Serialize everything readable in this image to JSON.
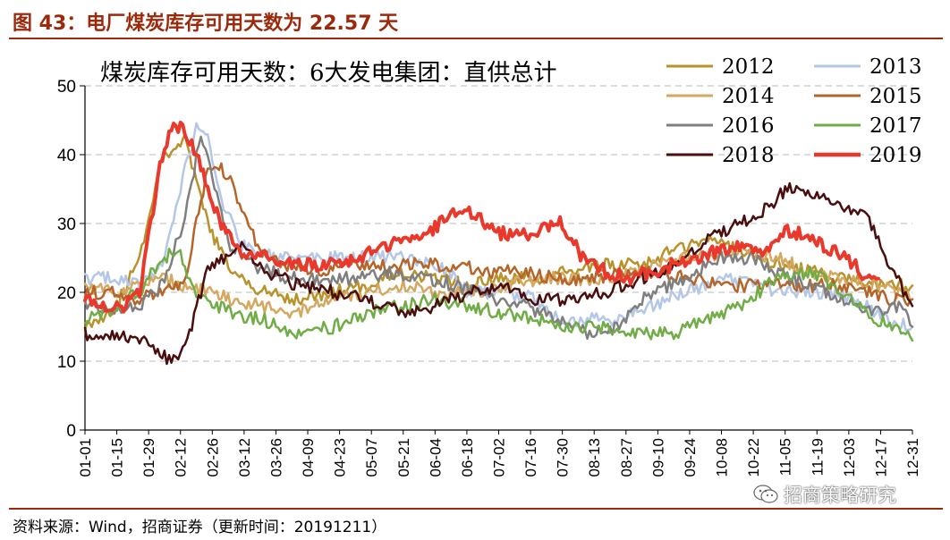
{
  "figure": {
    "title": "图 43：电厂煤炭库存可用天数为 22.57 天",
    "source": "资料来源：Wind，招商证券（更新时间：20191211）",
    "watermark": "招商策略研究"
  },
  "chart_data": {
    "type": "line",
    "title": "煤炭库存可用天数：6大发电集团：直供总计",
    "xlabel": "",
    "ylabel": "",
    "ylim": [
      0,
      50
    ],
    "yticks": [
      0,
      10,
      20,
      30,
      40,
      50
    ],
    "xticks": [
      "01-01",
      "01-15",
      "01-29",
      "02-12",
      "02-26",
      "03-12",
      "03-26",
      "04-09",
      "04-23",
      "05-07",
      "05-21",
      "06-04",
      "06-18",
      "07-02",
      "07-16",
      "07-30",
      "08-13",
      "08-27",
      "09-10",
      "09-24",
      "10-08",
      "10-22",
      "11-05",
      "11-19",
      "12-03",
      "12-17",
      "12-31"
    ],
    "grid": "horizontal dashed",
    "legend_position": "top-right",
    "series": [
      {
        "name": "2012",
        "color": "#b8922a",
        "width": 2.5,
        "points": [
          [
            1,
            15
          ],
          [
            15,
            18
          ],
          [
            25,
            25
          ],
          [
            35,
            40
          ],
          [
            45,
            42
          ],
          [
            55,
            30
          ],
          [
            65,
            23
          ],
          [
            80,
            20
          ],
          [
            95,
            19
          ],
          [
            110,
            20
          ],
          [
            125,
            21
          ],
          [
            140,
            23
          ],
          [
            155,
            22
          ],
          [
            170,
            21
          ],
          [
            185,
            22
          ],
          [
            200,
            22
          ],
          [
            215,
            23
          ],
          [
            230,
            24
          ],
          [
            245,
            24
          ],
          [
            260,
            26
          ],
          [
            275,
            28
          ],
          [
            290,
            26
          ],
          [
            305,
            24
          ],
          [
            320,
            23
          ],
          [
            335,
            22
          ],
          [
            350,
            21
          ],
          [
            365,
            21
          ]
        ]
      },
      {
        "name": "2013",
        "color": "#b4c7e7",
        "width": 2.5,
        "points": [
          [
            1,
            22
          ],
          [
            15,
            22
          ],
          [
            25,
            21
          ],
          [
            35,
            24
          ],
          [
            45,
            38
          ],
          [
            50,
            44
          ],
          [
            55,
            43
          ],
          [
            60,
            34
          ],
          [
            70,
            27
          ],
          [
            85,
            25
          ],
          [
            100,
            25
          ],
          [
            115,
            25
          ],
          [
            130,
            25
          ],
          [
            145,
            25
          ],
          [
            160,
            23
          ],
          [
            170,
            20
          ],
          [
            185,
            20
          ],
          [
            200,
            19
          ],
          [
            210,
            16
          ],
          [
            220,
            16
          ],
          [
            235,
            16
          ],
          [
            250,
            18
          ],
          [
            265,
            20
          ],
          [
            280,
            22
          ],
          [
            295,
            21
          ],
          [
            310,
            20
          ],
          [
            325,
            20
          ],
          [
            340,
            19
          ],
          [
            355,
            16
          ],
          [
            365,
            15
          ]
        ]
      },
      {
        "name": "2014",
        "color": "#d5a860",
        "width": 2.5,
        "points": [
          [
            1,
            21
          ],
          [
            15,
            20
          ],
          [
            25,
            21
          ],
          [
            35,
            22
          ],
          [
            45,
            21
          ],
          [
            55,
            20
          ],
          [
            65,
            19
          ],
          [
            80,
            18
          ],
          [
            95,
            17
          ],
          [
            110,
            19
          ],
          [
            125,
            20
          ],
          [
            140,
            21
          ],
          [
            155,
            20
          ],
          [
            170,
            20
          ],
          [
            185,
            21
          ],
          [
            200,
            22
          ],
          [
            215,
            22
          ],
          [
            230,
            22
          ],
          [
            245,
            23
          ],
          [
            260,
            25
          ],
          [
            275,
            25
          ],
          [
            290,
            26
          ],
          [
            305,
            25
          ],
          [
            320,
            23
          ],
          [
            335,
            22
          ],
          [
            350,
            21
          ],
          [
            365,
            19
          ]
        ]
      },
      {
        "name": "2015",
        "color": "#b5652a",
        "width": 2.5,
        "points": [
          [
            1,
            20
          ],
          [
            15,
            20
          ],
          [
            25,
            19
          ],
          [
            35,
            20
          ],
          [
            45,
            21
          ],
          [
            50,
            30
          ],
          [
            55,
            38
          ],
          [
            60,
            38
          ],
          [
            65,
            37
          ],
          [
            70,
            32
          ],
          [
            78,
            26
          ],
          [
            90,
            24
          ],
          [
            105,
            23
          ],
          [
            120,
            24
          ],
          [
            135,
            24
          ],
          [
            150,
            24
          ],
          [
            165,
            24
          ],
          [
            180,
            23
          ],
          [
            195,
            23
          ],
          [
            210,
            22
          ],
          [
            225,
            22
          ],
          [
            240,
            23
          ],
          [
            255,
            23
          ],
          [
            270,
            22
          ],
          [
            285,
            21
          ],
          [
            300,
            21
          ],
          [
            315,
            21
          ],
          [
            330,
            21
          ],
          [
            345,
            20
          ],
          [
            355,
            19
          ],
          [
            365,
            19
          ]
        ]
      },
      {
        "name": "2016",
        "color": "#7f7f7f",
        "width": 2.5,
        "points": [
          [
            1,
            18
          ],
          [
            15,
            17
          ],
          [
            25,
            18
          ],
          [
            35,
            21
          ],
          [
            45,
            31
          ],
          [
            52,
            43
          ],
          [
            58,
            35
          ],
          [
            65,
            27
          ],
          [
            75,
            24
          ],
          [
            90,
            22
          ],
          [
            105,
            22
          ],
          [
            120,
            22
          ],
          [
            135,
            23
          ],
          [
            150,
            22
          ],
          [
            165,
            21
          ],
          [
            180,
            19
          ],
          [
            195,
            18
          ],
          [
            210,
            16
          ],
          [
            222,
            14
          ],
          [
            235,
            15
          ],
          [
            250,
            20
          ],
          [
            265,
            22
          ],
          [
            280,
            25
          ],
          [
            295,
            25
          ],
          [
            305,
            23
          ],
          [
            320,
            21
          ],
          [
            335,
            19
          ],
          [
            350,
            17
          ],
          [
            360,
            18
          ],
          [
            365,
            15
          ]
        ]
      },
      {
        "name": "2017",
        "color": "#70ad47",
        "width": 2.5,
        "points": [
          [
            1,
            16
          ],
          [
            15,
            18
          ],
          [
            25,
            20
          ],
          [
            35,
            25
          ],
          [
            42,
            26
          ],
          [
            50,
            20
          ],
          [
            65,
            17
          ],
          [
            80,
            16
          ],
          [
            95,
            14
          ],
          [
            110,
            15
          ],
          [
            125,
            17
          ],
          [
            140,
            18
          ],
          [
            155,
            19
          ],
          [
            170,
            18
          ],
          [
            185,
            17
          ],
          [
            200,
            16
          ],
          [
            215,
            15
          ],
          [
            230,
            15
          ],
          [
            245,
            14
          ],
          [
            260,
            14
          ],
          [
            275,
            16
          ],
          [
            290,
            18
          ],
          [
            305,
            22
          ],
          [
            320,
            23
          ],
          [
            335,
            20
          ],
          [
            350,
            16
          ],
          [
            365,
            13
          ]
        ]
      },
      {
        "name": "2018",
        "color": "#4a0e0e",
        "width": 2.5,
        "points": [
          [
            1,
            14
          ],
          [
            15,
            14
          ],
          [
            25,
            13
          ],
          [
            35,
            11
          ],
          [
            40,
            10
          ],
          [
            45,
            12
          ],
          [
            55,
            23
          ],
          [
            62,
            25
          ],
          [
            70,
            27
          ],
          [
            80,
            23
          ],
          [
            95,
            21
          ],
          [
            110,
            20
          ],
          [
            125,
            19
          ],
          [
            140,
            17
          ],
          [
            155,
            18
          ],
          [
            170,
            20
          ],
          [
            185,
            21
          ],
          [
            200,
            19
          ],
          [
            215,
            19
          ],
          [
            230,
            20
          ],
          [
            245,
            22
          ],
          [
            260,
            24
          ],
          [
            275,
            28
          ],
          [
            290,
            30
          ],
          [
            300,
            32
          ],
          [
            310,
            35
          ],
          [
            318,
            34
          ],
          [
            330,
            33
          ],
          [
            345,
            31
          ],
          [
            355,
            24
          ],
          [
            365,
            18
          ]
        ]
      },
      {
        "name": "2019",
        "color": "#e8392c",
        "width": 4,
        "points": [
          [
            1,
            19
          ],
          [
            10,
            18
          ],
          [
            18,
            18
          ],
          [
            25,
            20
          ],
          [
            30,
            30
          ],
          [
            35,
            40
          ],
          [
            40,
            45
          ],
          [
            45,
            43
          ],
          [
            50,
            40
          ],
          [
            55,
            35
          ],
          [
            62,
            29
          ],
          [
            70,
            26
          ],
          [
            80,
            25
          ],
          [
            90,
            24
          ],
          [
            100,
            24
          ],
          [
            110,
            24
          ],
          [
            120,
            25
          ],
          [
            130,
            26
          ],
          [
            140,
            28
          ],
          [
            150,
            28
          ],
          [
            160,
            31
          ],
          [
            170,
            32
          ],
          [
            180,
            29
          ],
          [
            190,
            28
          ],
          [
            200,
            29
          ],
          [
            210,
            30
          ],
          [
            220,
            25
          ],
          [
            230,
            23
          ],
          [
            240,
            22
          ],
          [
            250,
            23
          ],
          [
            260,
            24
          ],
          [
            270,
            25
          ],
          [
            280,
            26
          ],
          [
            290,
            27
          ],
          [
            300,
            26
          ],
          [
            310,
            29
          ],
          [
            320,
            28
          ],
          [
            330,
            26
          ],
          [
            340,
            24
          ],
          [
            345,
            22
          ],
          [
            350,
            22
          ]
        ]
      }
    ]
  }
}
